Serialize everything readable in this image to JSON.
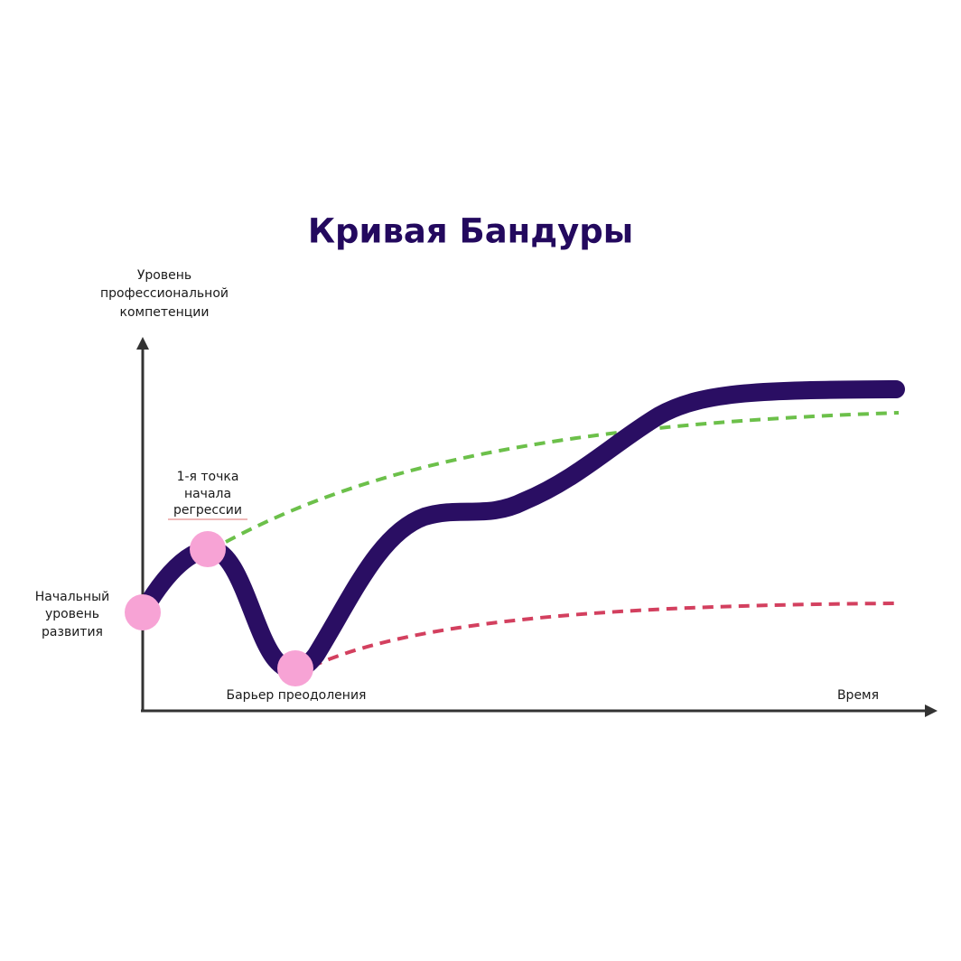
{
  "title": "Кривая Бандуры",
  "y_axis_label": [
    "Уровень",
    "профессиональной",
    "компетенции"
  ],
  "x_axis_label": "Время",
  "annotations": {
    "start": [
      "Начальный",
      "уровень",
      "развития"
    ],
    "regression": [
      "1-я точка",
      "начала",
      "регрессии"
    ],
    "barrier": "Барьер преодоления"
  }
}
